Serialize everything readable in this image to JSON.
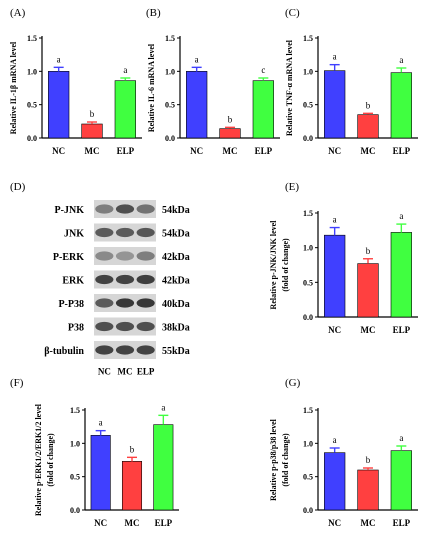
{
  "figure": {
    "panel_letters": [
      "(A)",
      "(B)",
      "(C)",
      "(D)",
      "(E)",
      "(F)",
      "(G)"
    ],
    "colors": {
      "NC": "#4040ff",
      "MC": "#ff4040",
      "ELP": "#40ff40",
      "axis": "#000000",
      "errorbar_color": "match-bar"
    }
  },
  "western_blot": {
    "rows": [
      {
        "protein": "P-JNK",
        "size": "54kDa",
        "intensity": [
          0.55,
          0.75,
          0.6
        ]
      },
      {
        "protein": "JNK",
        "size": "54kDa",
        "intensity": [
          0.7,
          0.7,
          0.72
        ]
      },
      {
        "protein": "P-ERK",
        "size": "42kDa",
        "intensity": [
          0.5,
          0.45,
          0.55
        ]
      },
      {
        "protein": "ERK",
        "size": "42kDa",
        "intensity": [
          0.8,
          0.8,
          0.82
        ]
      },
      {
        "protein": "P-P38",
        "size": "40kDa",
        "intensity": [
          0.7,
          0.85,
          0.85
        ]
      },
      {
        "protein": "P38",
        "size": "38kDa",
        "intensity": [
          0.75,
          0.75,
          0.75
        ]
      },
      {
        "protein": "β-tubulin",
        "size": "55kDa",
        "intensity": [
          0.8,
          0.8,
          0.8
        ]
      }
    ],
    "lanes": [
      "NC",
      "MC",
      "ELP"
    ]
  },
  "chart_data": [
    {
      "panel": "(A)",
      "type": "bar",
      "categories": [
        "NC",
        "MC",
        "ELP"
      ],
      "values": [
        1.0,
        0.21,
        0.86
      ],
      "errors": [
        0.06,
        0.03,
        0.04
      ],
      "significance": [
        "a",
        "b",
        "a"
      ],
      "ylabel": "Relative IL-1β mRNA level",
      "ylim": [
        0,
        1.5
      ],
      "yticks": [
        "0.0",
        "0.5",
        "1.0",
        "1.5"
      ]
    },
    {
      "panel": "(B)",
      "type": "bar",
      "categories": [
        "NC",
        "MC",
        "ELP"
      ],
      "values": [
        1.0,
        0.14,
        0.86
      ],
      "errors": [
        0.06,
        0.02,
        0.04
      ],
      "significance": [
        "a",
        "b",
        "c"
      ],
      "ylabel": "Relative IL-6 mRNA level",
      "ylim": [
        0,
        1.5
      ],
      "yticks": [
        "0.0",
        "0.5",
        "1.0",
        "1.5"
      ]
    },
    {
      "panel": "(C)",
      "type": "bar",
      "categories": [
        "NC",
        "MC",
        "ELP"
      ],
      "values": [
        1.01,
        0.35,
        0.98
      ],
      "errors": [
        0.09,
        0.02,
        0.07
      ],
      "significance": [
        "a",
        "b",
        "a"
      ],
      "ylabel": "Relative TNF-α mRNA level",
      "ylim": [
        0,
        1.5
      ],
      "yticks": [
        "0.0",
        "0.5",
        "1.0",
        "1.5"
      ]
    },
    {
      "panel": "(E)",
      "type": "bar",
      "categories": [
        "NC",
        "MC",
        "ELP"
      ],
      "values": [
        1.18,
        0.77,
        1.22
      ],
      "errors": [
        0.11,
        0.07,
        0.12
      ],
      "significance": [
        "a",
        "b",
        "a"
      ],
      "ylabel": "Relative p-JNK/JNK level",
      "ylabel2": "(fold of change)",
      "ylim": [
        0,
        1.5
      ],
      "yticks": [
        "0.0",
        "0.5",
        "1.0",
        "1.5"
      ]
    },
    {
      "panel": "(F)",
      "type": "bar",
      "categories": [
        "NC",
        "MC",
        "ELP"
      ],
      "values": [
        1.12,
        0.73,
        1.28
      ],
      "errors": [
        0.07,
        0.06,
        0.14
      ],
      "significance": [
        "a",
        "b",
        "a"
      ],
      "ylabel": "Relative p-ERK1/2/ERK1/2 level",
      "ylabel2": "(fold of change)",
      "ylim": [
        0,
        1.5
      ],
      "yticks": [
        "0.0",
        "0.5",
        "1.0",
        "1.5"
      ]
    },
    {
      "panel": "(G)",
      "type": "bar",
      "categories": [
        "NC",
        "MC",
        "ELP"
      ],
      "values": [
        0.86,
        0.6,
        0.89
      ],
      "errors": [
        0.07,
        0.03,
        0.07
      ],
      "significance": [
        "a",
        "b",
        "a"
      ],
      "ylabel": "Relative p-p38/p38 level",
      "ylabel2": "(fold of change)",
      "ylim": [
        0,
        1.5
      ],
      "yticks": [
        "0.0",
        "0.5",
        "1.0",
        "1.5"
      ]
    }
  ]
}
